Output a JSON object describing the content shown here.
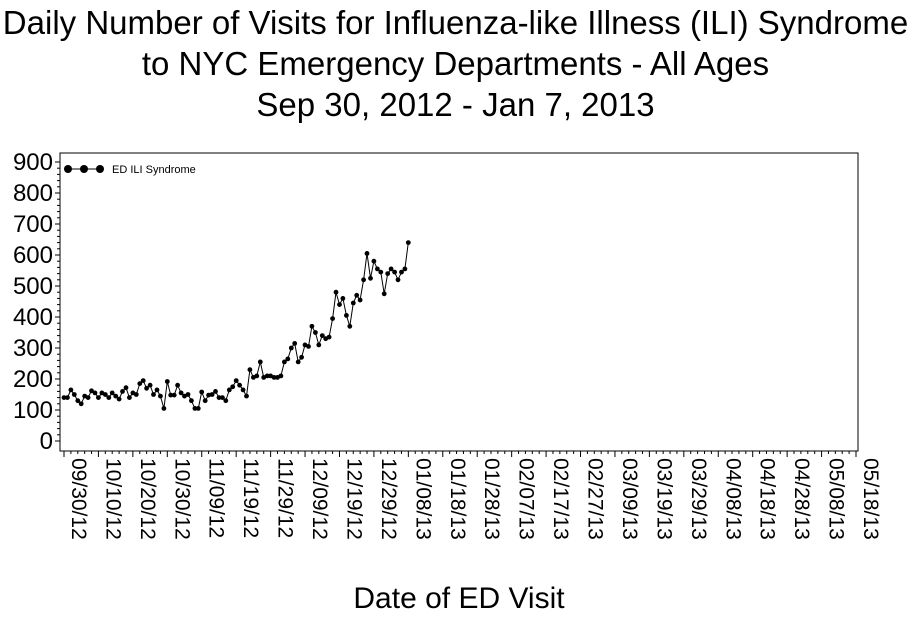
{
  "chart_data": {
    "type": "line",
    "title": [
      "Daily Number of Visits for Influenza-like Illness (ILI) Syndrome",
      "to NYC Emergency Departments - All Ages",
      "Sep 30, 2012 -  Jan 7, 2013"
    ],
    "xlabel": "Date of ED Visit",
    "ylabel": "",
    "ylim": [
      0,
      900
    ],
    "yticks": [
      0,
      100,
      200,
      300,
      400,
      500,
      600,
      700,
      800,
      900
    ],
    "xlim": [
      "2012-09-30",
      "2013-05-18"
    ],
    "xticks": [
      "09/30/12",
      "10/10/12",
      "10/20/12",
      "10/30/12",
      "11/09/12",
      "11/19/12",
      "11/29/12",
      "12/09/12",
      "12/19/12",
      "12/29/12",
      "01/08/13",
      "01/18/13",
      "01/28/13",
      "02/07/13",
      "02/17/13",
      "02/27/13",
      "03/09/13",
      "03/19/13",
      "03/29/13",
      "04/08/13",
      "04/18/13",
      "04/28/13",
      "05/08/13",
      "05/18/13"
    ],
    "grid": false,
    "legend_position": "top-left",
    "series": [
      {
        "name": "ED ILI Syndrome",
        "color": "#000000",
        "marker": "circle",
        "x_start": "2012-09-30",
        "x_step_days": 1,
        "values": [
          140,
          140,
          165,
          150,
          130,
          120,
          145,
          140,
          162,
          155,
          140,
          155,
          150,
          140,
          155,
          145,
          135,
          160,
          172,
          140,
          155,
          150,
          185,
          195,
          170,
          180,
          150,
          165,
          145,
          105,
          192,
          148,
          148,
          180,
          155,
          145,
          150,
          130,
          105,
          105,
          158,
          130,
          148,
          150,
          160,
          140,
          140,
          130,
          165,
          175,
          195,
          180,
          165,
          145,
          230,
          205,
          210,
          255,
          205,
          210,
          210,
          205,
          205,
          210,
          255,
          265,
          300,
          315,
          255,
          270,
          310,
          305,
          370,
          350,
          310,
          340,
          330,
          335,
          395,
          480,
          440,
          460,
          405,
          370,
          445,
          470,
          455,
          520,
          605,
          525,
          580,
          555,
          545,
          475,
          540,
          555,
          545,
          520,
          545,
          555,
          640
        ]
      }
    ]
  }
}
